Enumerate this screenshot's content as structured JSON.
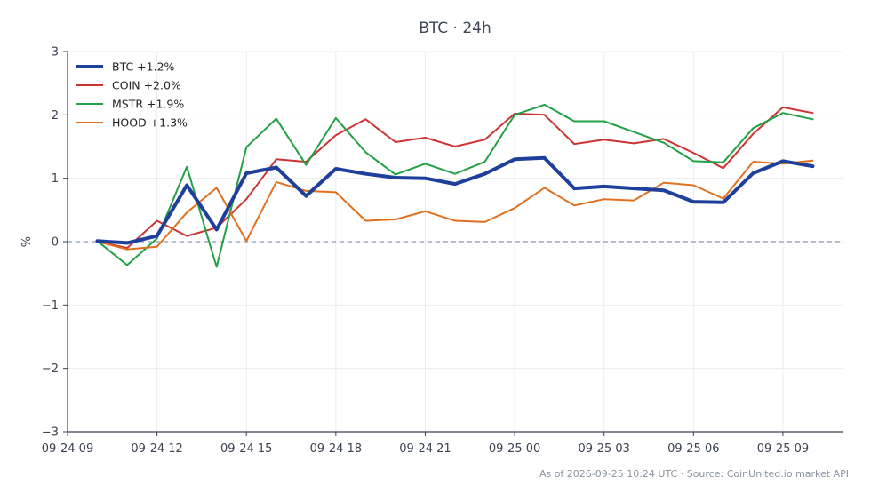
{
  "chart_data": {
    "type": "line",
    "title": "BTC · 24h",
    "ylabel": "%",
    "xlabel": "",
    "ylim": [
      -3,
      3
    ],
    "yticks": [
      -3,
      -2,
      -1,
      0,
      1,
      2,
      3
    ],
    "ytick_labels": [
      "−3",
      "−2",
      "−1",
      "0",
      "1",
      "2",
      "3"
    ],
    "xlim": [
      "2026-09-24T09:00",
      "2026-09-25T11:00"
    ],
    "x_ticks": [
      {
        "time": "2026-09-24T09:00",
        "label": "09-24 09"
      },
      {
        "time": "2026-09-24T12:00",
        "label": "09-24 12"
      },
      {
        "time": "2026-09-24T15:00",
        "label": "09-24 15"
      },
      {
        "time": "2026-09-24T18:00",
        "label": "09-24 18"
      },
      {
        "time": "2026-09-24T21:00",
        "label": "09-24 21"
      },
      {
        "time": "2026-09-25T00:00",
        "label": "09-25 00"
      },
      {
        "time": "2026-09-25T03:00",
        "label": "09-25 03"
      },
      {
        "time": "2026-09-25T06:00",
        "label": "09-25 06"
      },
      {
        "time": "2026-09-25T09:00",
        "label": "09-25 09"
      }
    ],
    "x": [
      "2026-09-24T10:00",
      "2026-09-24T11:00",
      "2026-09-24T12:00",
      "2026-09-24T13:00",
      "2026-09-24T14:00",
      "2026-09-24T15:00",
      "2026-09-24T16:00",
      "2026-09-24T17:00",
      "2026-09-24T18:00",
      "2026-09-24T19:00",
      "2026-09-24T20:00",
      "2026-09-24T21:00",
      "2026-09-24T22:00",
      "2026-09-24T23:00",
      "2026-09-25T00:00",
      "2026-09-25T01:00",
      "2026-09-25T02:00",
      "2026-09-25T03:00",
      "2026-09-25T04:00",
      "2026-09-25T05:00",
      "2026-09-25T06:00",
      "2026-09-25T07:00",
      "2026-09-25T08:00",
      "2026-09-25T09:00",
      "2026-09-25T10:00"
    ],
    "series": [
      {
        "name": "BTC +1.2%",
        "color": "#1f3f9c",
        "values": [
          0.01,
          -0.02,
          0.09,
          0.89,
          0.19,
          1.08,
          1.17,
          0.72,
          1.15,
          1.07,
          1.01,
          1.0,
          0.91,
          1.07,
          1.3,
          1.32,
          0.84,
          0.87,
          0.84,
          0.81,
          0.63,
          0.62,
          1.08,
          1.27,
          1.19
        ]
      },
      {
        "name": "COIN +2.0%",
        "color": "#cc3333",
        "values": [
          0.0,
          -0.1,
          0.33,
          0.09,
          0.22,
          0.67,
          1.3,
          1.26,
          1.68,
          1.93,
          1.57,
          1.64,
          1.5,
          1.61,
          2.02,
          2.0,
          1.54,
          1.61,
          1.55,
          1.62,
          1.4,
          1.16,
          1.7,
          2.12,
          2.03
        ]
      },
      {
        "name": "MSTR +1.9%",
        "color": "#22a045",
        "values": [
          0.01,
          -0.37,
          0.05,
          1.18,
          -0.4,
          1.49,
          1.94,
          1.21,
          1.95,
          1.41,
          1.06,
          1.23,
          1.07,
          1.26,
          2.0,
          2.16,
          1.9,
          1.9,
          1.73,
          1.56,
          1.27,
          1.25,
          1.79,
          2.03,
          1.93
        ]
      },
      {
        "name": "HOOD +1.3%",
        "color": "#e07020",
        "values": [
          0.0,
          -0.12,
          -0.08,
          0.46,
          0.85,
          0.01,
          0.94,
          0.8,
          0.78,
          0.33,
          0.35,
          0.48,
          0.33,
          0.31,
          0.53,
          0.85,
          0.57,
          0.67,
          0.65,
          0.93,
          0.89,
          0.68,
          1.26,
          1.23,
          1.28
        ]
      }
    ],
    "zero_line": true,
    "grid": true,
    "legend_position": "top-left"
  },
  "footer_text": "As of 2026-09-25 10:24 UTC · Source: CoinUnited.io market API"
}
